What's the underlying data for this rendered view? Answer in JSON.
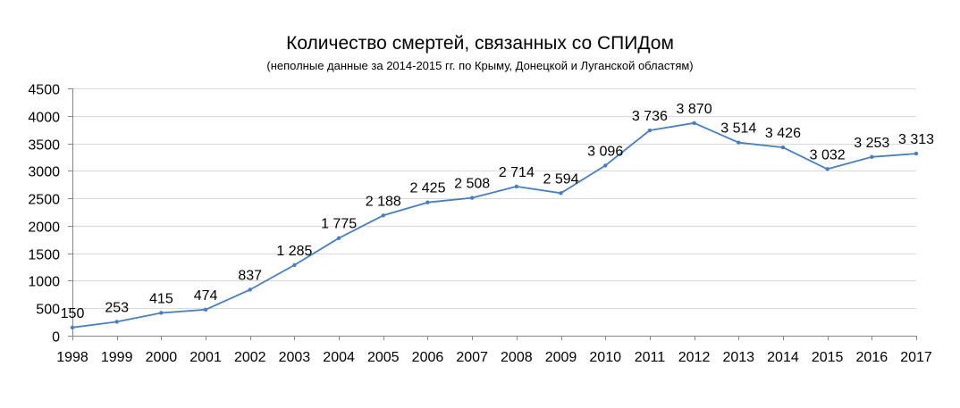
{
  "chart_data": {
    "type": "line",
    "title": "Количество смертей, связанных со СПИДом",
    "subtitle": "(неполные данные за 2014-2015 гг. по Крыму, Донецкой и Луганской областям)",
    "xlabel": "",
    "ylabel": "",
    "categories": [
      "1998",
      "1999",
      "2000",
      "2001",
      "2002",
      "2003",
      "2004",
      "2005",
      "2006",
      "2007",
      "2008",
      "2009",
      "2010",
      "2011",
      "2012",
      "2013",
      "2014",
      "2015",
      "2016",
      "2017"
    ],
    "series": [
      {
        "values": [
          150,
          253,
          415,
          474,
          837,
          1285,
          1775,
          2188,
          2425,
          2508,
          2714,
          2594,
          3096,
          3736,
          3870,
          3514,
          3426,
          3032,
          3253,
          3313
        ],
        "data_labels": [
          "150",
          "253",
          "415",
          "474",
          "837",
          "1 285",
          "1 775",
          "2 188",
          "2 425",
          "2 508",
          "2 714",
          "2 594",
          "3 096",
          "3 736",
          "3 870",
          "3 514",
          "3 426",
          "3 032",
          "3 253",
          "3 313"
        ],
        "color": "#4a7ebb"
      }
    ],
    "ylim": [
      0,
      4500
    ],
    "yticks": [
      "0",
      "500",
      "1000",
      "1500",
      "2000",
      "2500",
      "3000",
      "3500",
      "4000",
      "4500"
    ],
    "grid": true,
    "legend": "none",
    "gridline_color": "#d9d9d9",
    "axis_color": "#868686"
  }
}
